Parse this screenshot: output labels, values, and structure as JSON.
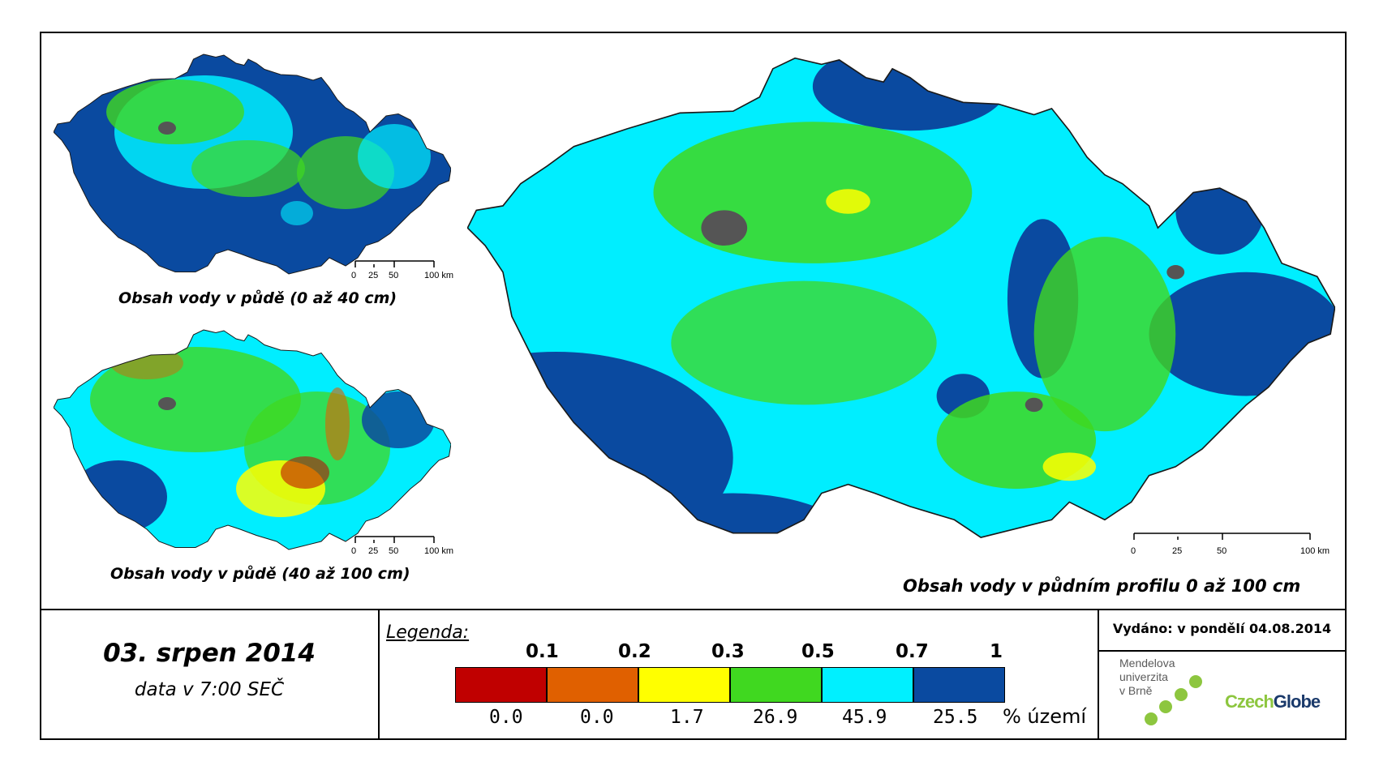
{
  "maps": [
    {
      "title": "Obsah vody v půdě (0 až 40 cm)",
      "scale_labels": [
        "0",
        "25",
        "50",
        "100 km"
      ]
    },
    {
      "title": "Obsah vody v půdě (40 až 100 cm)",
      "scale_labels": [
        "0",
        "25",
        "50",
        "100 km"
      ]
    },
    {
      "title": "Obsah vody v půdním profilu 0 až 100 cm",
      "scale_labels": [
        "0",
        "25",
        "50",
        "100 km"
      ]
    }
  ],
  "date": "03. srpen 2014",
  "time": "data v 7:00 SEČ",
  "legend": {
    "title": "Legenda:",
    "thresholds": [
      "0.1",
      "0.2",
      "0.3",
      "0.5",
      "0.7",
      "1"
    ],
    "classes": [
      {
        "color": "#c00000",
        "percent": "0.0"
      },
      {
        "color": "#e06000",
        "percent": "0.0"
      },
      {
        "color": "#ffff00",
        "percent": "1.7"
      },
      {
        "color": "#40d820",
        "percent": "26.9"
      },
      {
        "color": "#00f0ff",
        "percent": "45.9"
      },
      {
        "color": "#0a4aa0",
        "percent": "25.5"
      }
    ],
    "unit": "% území"
  },
  "issued": "Vydáno: v pondělí 04.08.2014",
  "logos": {
    "mendel": [
      "Mendelova",
      "univerzita",
      "v Brně"
    ],
    "czechglobe": "CzechGlobe"
  },
  "colors": {
    "dark_blue": "#0a4aa0",
    "cyan": "#00eeff",
    "green": "#40d820",
    "yellow": "#ffff00",
    "orange": "#e06000",
    "red": "#c00000",
    "urban_gray": "#555555",
    "logo_green": "#8dc63f",
    "logo_navy": "#1b3a6b"
  }
}
